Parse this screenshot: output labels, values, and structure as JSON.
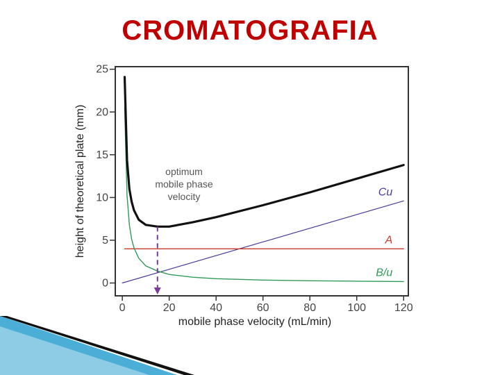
{
  "slide": {
    "title": "CROMATOGRAFIA"
  },
  "chart_data": {
    "type": "line",
    "xlabel": "mobile phase velocity (mL/min)",
    "ylabel": "height of theoretical plate (mm)",
    "xlim": [
      -3,
      122
    ],
    "ylim": [
      -1.5,
      25.3
    ],
    "xticks": [
      0,
      20,
      40,
      60,
      80,
      100,
      120
    ],
    "yticks": [
      0,
      5,
      10,
      15,
      20,
      25
    ],
    "grid": false,
    "annotation": {
      "lines": [
        "optimum",
        "mobile phase",
        "velocity"
      ],
      "x": 15
    },
    "series": [
      {
        "name": "Cu",
        "color": "#4b3b9a",
        "width": 1.2,
        "x": [
          0,
          120
        ],
        "y": [
          0,
          9.6
        ]
      },
      {
        "name": "A",
        "color": "#c8382a",
        "width": 1.4,
        "x": [
          1,
          120
        ],
        "y": [
          4,
          4
        ]
      },
      {
        "name": "B/u",
        "color": "#2e9a57",
        "width": 1.4,
        "x": [
          1,
          2,
          3,
          4,
          5,
          7,
          10,
          15,
          20,
          30,
          40,
          60,
          80,
          100,
          120
        ],
        "y": [
          20.5,
          10.3,
          6.8,
          5.1,
          4.1,
          2.9,
          2.0,
          1.4,
          1.0,
          0.68,
          0.51,
          0.34,
          0.26,
          0.21,
          0.17
        ]
      },
      {
        "name": "",
        "color": "#111111",
        "width": 3.2,
        "x": [
          1,
          2,
          3,
          4,
          5,
          7,
          10,
          15,
          20,
          30,
          40,
          60,
          80,
          100,
          120
        ],
        "y": [
          24.1,
          14.4,
          11.0,
          9.5,
          8.5,
          7.4,
          6.8,
          6.6,
          6.6,
          7.1,
          7.7,
          9.1,
          10.6,
          12.2,
          13.8
        ]
      }
    ]
  }
}
